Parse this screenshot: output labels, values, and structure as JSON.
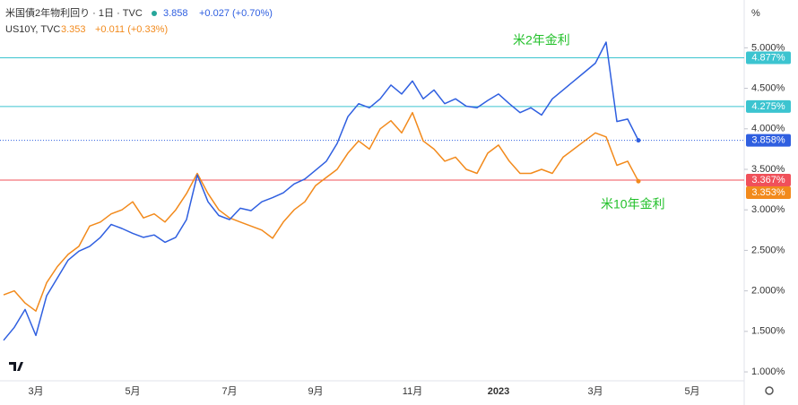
{
  "chart_data": {
    "type": "line",
    "title": "米国債2年物利回り · 1日 · TVC",
    "header_price": "3.858",
    "header_change": "+0.027 (+0.70%)",
    "subtitle": "US10Y, TVC",
    "subtitle_price": "3.353",
    "subtitle_change": "+0.011 (+0.33%)",
    "unit_label": "%",
    "annotations": [
      {
        "text": "米2年金利",
        "color": "#22c02a"
      },
      {
        "text": "米10年金利",
        "color": "#22c02a"
      }
    ],
    "categories": [
      null,
      null,
      null,
      "3月",
      null,
      null,
      null,
      null,
      null,
      null,
      null,
      null,
      "5月",
      null,
      null,
      null,
      null,
      null,
      null,
      null,
      null,
      "7月",
      null,
      null,
      null,
      null,
      null,
      null,
      null,
      "9月",
      null,
      null,
      null,
      null,
      null,
      null,
      null,
      null,
      "11月",
      null,
      null,
      null,
      null,
      null,
      null,
      null,
      "2023",
      null,
      null,
      null,
      null,
      null,
      null,
      null,
      null,
      "3月",
      null,
      null,
      null,
      null,
      null,
      null,
      null,
      null,
      "5月",
      null
    ],
    "series": [
      {
        "name": "米国債2年物利回り",
        "color": "#2f5fe0",
        "values": [
          1.39,
          1.55,
          1.77,
          1.45,
          1.94,
          2.16,
          2.38,
          2.49,
          2.55,
          2.66,
          2.82,
          2.77,
          2.71,
          2.66,
          2.69,
          2.6,
          2.66,
          2.88,
          3.43,
          3.1,
          2.93,
          2.88,
          3.02,
          2.99,
          3.1,
          3.15,
          3.21,
          3.32,
          3.38,
          3.49,
          3.6,
          3.82,
          4.15,
          4.31,
          4.26,
          4.37,
          4.54,
          4.43,
          4.59,
          4.37,
          4.48,
          4.31,
          4.37,
          4.28,
          4.26,
          4.35,
          4.43,
          4.31,
          4.2,
          4.26,
          4.17,
          4.37,
          4.48,
          4.59,
          4.7,
          4.81,
          5.07,
          4.09,
          4.12,
          3.858,
          null,
          null,
          null,
          null,
          null,
          null
        ]
      },
      {
        "name": "US10Y",
        "color": "#f28a1c",
        "values": [
          1.95,
          2.0,
          1.85,
          1.75,
          2.1,
          2.3,
          2.45,
          2.55,
          2.8,
          2.85,
          2.95,
          3.0,
          3.1,
          2.9,
          2.95,
          2.85,
          3.0,
          3.2,
          3.45,
          3.2,
          3.0,
          2.9,
          2.85,
          2.8,
          2.75,
          2.65,
          2.85,
          3.0,
          3.1,
          3.3,
          3.4,
          3.5,
          3.7,
          3.85,
          3.75,
          4.0,
          4.1,
          3.95,
          4.2,
          3.85,
          3.75,
          3.6,
          3.65,
          3.5,
          3.45,
          3.7,
          3.8,
          3.6,
          3.45,
          3.45,
          3.5,
          3.45,
          3.65,
          3.75,
          3.85,
          3.95,
          3.9,
          3.55,
          3.6,
          3.353,
          null,
          null,
          null,
          null,
          null,
          null
        ]
      }
    ],
    "ylim": [
      0.89,
      5.59
    ],
    "yticks": [
      {
        "value": 1,
        "label": "1.000%"
      },
      {
        "value": 1.5,
        "label": "1.500%"
      },
      {
        "value": 2,
        "label": "2.000%"
      },
      {
        "value": 2.5,
        "label": "2.500%"
      },
      {
        "value": 3,
        "label": "3.000%"
      },
      {
        "value": 3.5,
        "label": "3.500%"
      },
      {
        "value": 4,
        "label": "4.000%"
      },
      {
        "value": 4.5,
        "label": "4.500%"
      },
      {
        "value": 5,
        "label": "5.000%"
      }
    ],
    "price_lines": [
      {
        "value": 4.877,
        "label": "4.877%",
        "color": "#3cc4d0",
        "style": "solid"
      },
      {
        "value": 4.275,
        "label": "4.275%",
        "color": "#3cc4d0",
        "style": "solid"
      },
      {
        "value": 3.858,
        "label": "3.858%",
        "color": "#2f5fe0",
        "style": "dotted"
      },
      {
        "value": 3.367,
        "label": "3.367%",
        "color": "#f0505a",
        "style": "solid"
      },
      {
        "value": 3.353,
        "label": "3.353%",
        "color": "#f28a1c",
        "style": "none"
      }
    ]
  }
}
